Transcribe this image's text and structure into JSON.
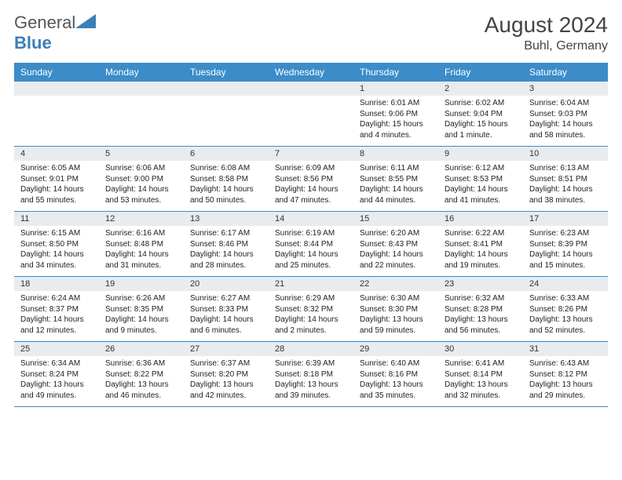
{
  "brand": {
    "part1": "General",
    "part2": "Blue"
  },
  "title": "August 2024",
  "location": "Buhl, Germany",
  "colors": {
    "header_bg": "#3b8cc9",
    "header_text": "#ffffff",
    "daynum_bg": "#e8ecef",
    "border": "#3b8cc9",
    "text": "#222222",
    "brand_gray": "#555555",
    "brand_blue": "#3b7fb8",
    "background": "#ffffff"
  },
  "day_labels": [
    "Sunday",
    "Monday",
    "Tuesday",
    "Wednesday",
    "Thursday",
    "Friday",
    "Saturday"
  ],
  "weeks": [
    [
      {
        "n": "",
        "sr": "",
        "ss": "",
        "dl": ""
      },
      {
        "n": "",
        "sr": "",
        "ss": "",
        "dl": ""
      },
      {
        "n": "",
        "sr": "",
        "ss": "",
        "dl": ""
      },
      {
        "n": "",
        "sr": "",
        "ss": "",
        "dl": ""
      },
      {
        "n": "1",
        "sr": "Sunrise: 6:01 AM",
        "ss": "Sunset: 9:06 PM",
        "dl": "Daylight: 15 hours and 4 minutes."
      },
      {
        "n": "2",
        "sr": "Sunrise: 6:02 AM",
        "ss": "Sunset: 9:04 PM",
        "dl": "Daylight: 15 hours and 1 minute."
      },
      {
        "n": "3",
        "sr": "Sunrise: 6:04 AM",
        "ss": "Sunset: 9:03 PM",
        "dl": "Daylight: 14 hours and 58 minutes."
      }
    ],
    [
      {
        "n": "4",
        "sr": "Sunrise: 6:05 AM",
        "ss": "Sunset: 9:01 PM",
        "dl": "Daylight: 14 hours and 55 minutes."
      },
      {
        "n": "5",
        "sr": "Sunrise: 6:06 AM",
        "ss": "Sunset: 9:00 PM",
        "dl": "Daylight: 14 hours and 53 minutes."
      },
      {
        "n": "6",
        "sr": "Sunrise: 6:08 AM",
        "ss": "Sunset: 8:58 PM",
        "dl": "Daylight: 14 hours and 50 minutes."
      },
      {
        "n": "7",
        "sr": "Sunrise: 6:09 AM",
        "ss": "Sunset: 8:56 PM",
        "dl": "Daylight: 14 hours and 47 minutes."
      },
      {
        "n": "8",
        "sr": "Sunrise: 6:11 AM",
        "ss": "Sunset: 8:55 PM",
        "dl": "Daylight: 14 hours and 44 minutes."
      },
      {
        "n": "9",
        "sr": "Sunrise: 6:12 AM",
        "ss": "Sunset: 8:53 PM",
        "dl": "Daylight: 14 hours and 41 minutes."
      },
      {
        "n": "10",
        "sr": "Sunrise: 6:13 AM",
        "ss": "Sunset: 8:51 PM",
        "dl": "Daylight: 14 hours and 38 minutes."
      }
    ],
    [
      {
        "n": "11",
        "sr": "Sunrise: 6:15 AM",
        "ss": "Sunset: 8:50 PM",
        "dl": "Daylight: 14 hours and 34 minutes."
      },
      {
        "n": "12",
        "sr": "Sunrise: 6:16 AM",
        "ss": "Sunset: 8:48 PM",
        "dl": "Daylight: 14 hours and 31 minutes."
      },
      {
        "n": "13",
        "sr": "Sunrise: 6:17 AM",
        "ss": "Sunset: 8:46 PM",
        "dl": "Daylight: 14 hours and 28 minutes."
      },
      {
        "n": "14",
        "sr": "Sunrise: 6:19 AM",
        "ss": "Sunset: 8:44 PM",
        "dl": "Daylight: 14 hours and 25 minutes."
      },
      {
        "n": "15",
        "sr": "Sunrise: 6:20 AM",
        "ss": "Sunset: 8:43 PM",
        "dl": "Daylight: 14 hours and 22 minutes."
      },
      {
        "n": "16",
        "sr": "Sunrise: 6:22 AM",
        "ss": "Sunset: 8:41 PM",
        "dl": "Daylight: 14 hours and 19 minutes."
      },
      {
        "n": "17",
        "sr": "Sunrise: 6:23 AM",
        "ss": "Sunset: 8:39 PM",
        "dl": "Daylight: 14 hours and 15 minutes."
      }
    ],
    [
      {
        "n": "18",
        "sr": "Sunrise: 6:24 AM",
        "ss": "Sunset: 8:37 PM",
        "dl": "Daylight: 14 hours and 12 minutes."
      },
      {
        "n": "19",
        "sr": "Sunrise: 6:26 AM",
        "ss": "Sunset: 8:35 PM",
        "dl": "Daylight: 14 hours and 9 minutes."
      },
      {
        "n": "20",
        "sr": "Sunrise: 6:27 AM",
        "ss": "Sunset: 8:33 PM",
        "dl": "Daylight: 14 hours and 6 minutes."
      },
      {
        "n": "21",
        "sr": "Sunrise: 6:29 AM",
        "ss": "Sunset: 8:32 PM",
        "dl": "Daylight: 14 hours and 2 minutes."
      },
      {
        "n": "22",
        "sr": "Sunrise: 6:30 AM",
        "ss": "Sunset: 8:30 PM",
        "dl": "Daylight: 13 hours and 59 minutes."
      },
      {
        "n": "23",
        "sr": "Sunrise: 6:32 AM",
        "ss": "Sunset: 8:28 PM",
        "dl": "Daylight: 13 hours and 56 minutes."
      },
      {
        "n": "24",
        "sr": "Sunrise: 6:33 AM",
        "ss": "Sunset: 8:26 PM",
        "dl": "Daylight: 13 hours and 52 minutes."
      }
    ],
    [
      {
        "n": "25",
        "sr": "Sunrise: 6:34 AM",
        "ss": "Sunset: 8:24 PM",
        "dl": "Daylight: 13 hours and 49 minutes."
      },
      {
        "n": "26",
        "sr": "Sunrise: 6:36 AM",
        "ss": "Sunset: 8:22 PM",
        "dl": "Daylight: 13 hours and 46 minutes."
      },
      {
        "n": "27",
        "sr": "Sunrise: 6:37 AM",
        "ss": "Sunset: 8:20 PM",
        "dl": "Daylight: 13 hours and 42 minutes."
      },
      {
        "n": "28",
        "sr": "Sunrise: 6:39 AM",
        "ss": "Sunset: 8:18 PM",
        "dl": "Daylight: 13 hours and 39 minutes."
      },
      {
        "n": "29",
        "sr": "Sunrise: 6:40 AM",
        "ss": "Sunset: 8:16 PM",
        "dl": "Daylight: 13 hours and 35 minutes."
      },
      {
        "n": "30",
        "sr": "Sunrise: 6:41 AM",
        "ss": "Sunset: 8:14 PM",
        "dl": "Daylight: 13 hours and 32 minutes."
      },
      {
        "n": "31",
        "sr": "Sunrise: 6:43 AM",
        "ss": "Sunset: 8:12 PM",
        "dl": "Daylight: 13 hours and 29 minutes."
      }
    ]
  ]
}
